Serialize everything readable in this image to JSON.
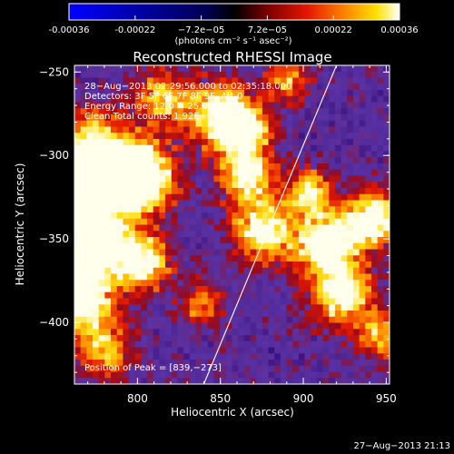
{
  "chart_data": {
    "type": "heatmap",
    "title": "Reconstructed RHESSI Image",
    "xlabel": "Heliocentric X (arcsec)",
    "ylabel": "Heliocentric Y (arcsec)",
    "xlim": [
      762,
      952
    ],
    "ylim": [
      -437,
      -246
    ],
    "xticks": [
      800,
      850,
      900,
      950
    ],
    "yticks": [
      -250,
      -300,
      -350,
      -400
    ],
    "colorbar": {
      "min": -0.00036,
      "max": 0.00036,
      "ticks": [
        "-0.00036",
        "-0.00022",
        "−7.2e−05",
        "7.2e−05",
        "0.00022",
        "0.00036"
      ],
      "label": "(photons cm⁻² s⁻¹ asec⁻²)"
    },
    "info_lines": [
      "28−Aug−2013 02:29:56.000 to 02:35:18.000",
      "Detectors: 3F 5F 6F 7F 8F 9F, Att 0",
      "Energy Range: 12.0 − 25.0 keV",
      "Clean     Total counts: 1.92E+04"
    ],
    "peak_label": "Position of Peak = [839,−273]",
    "peak": [
      839,
      -273
    ],
    "limb_line": [
      [
        840,
        -437
      ],
      [
        920,
        -246
      ]
    ],
    "timestamp": "27−Aug−2013 21:13"
  }
}
